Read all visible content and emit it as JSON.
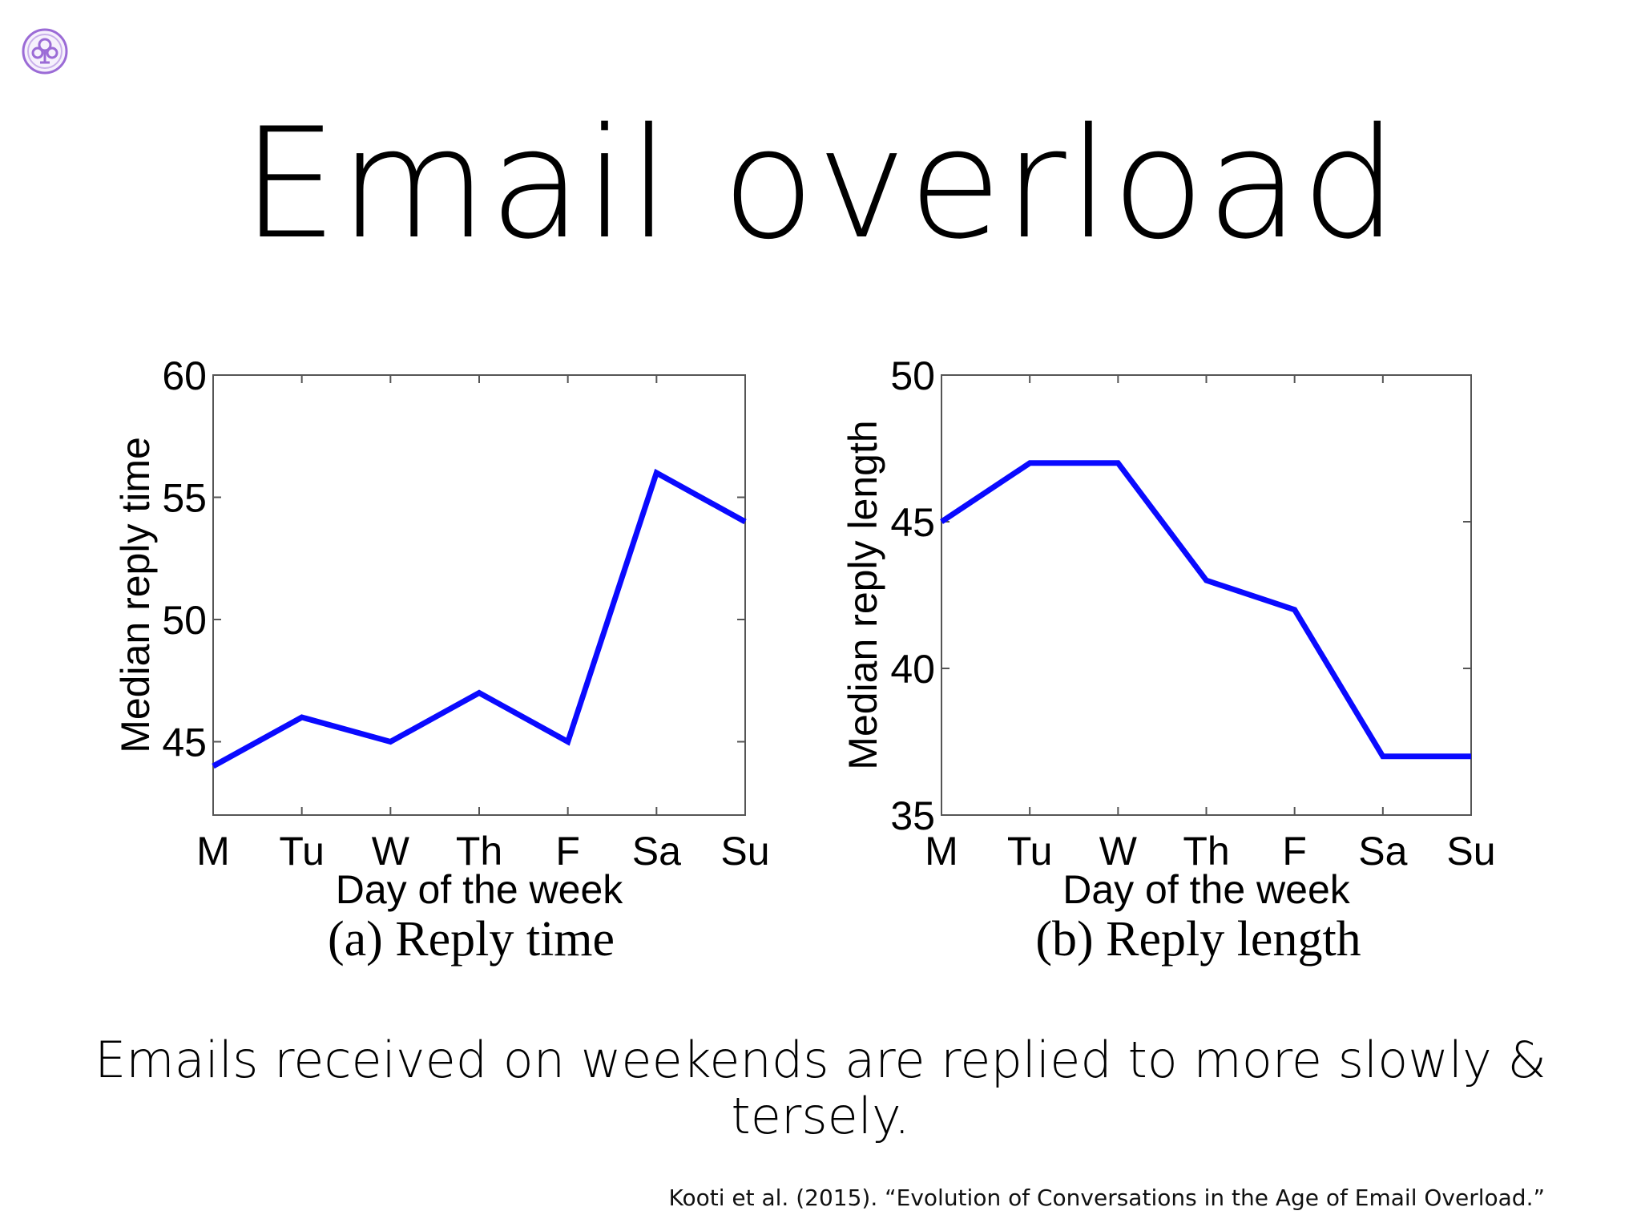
{
  "slide": {
    "title": "Email overload",
    "subtitle": "Emails received on weekends are replied to more slowly & tersely.",
    "citation": "Kooti et al. (2015). “Evolution of Conversations in the Age of Email Overload.”",
    "logo_icon": "university-seal-icon",
    "accent_color": "#9b6bd6"
  },
  "chart_data": [
    {
      "type": "line",
      "caption": "(a) Reply time",
      "xlabel": "Day of the week",
      "ylabel": "Median reply time",
      "categories": [
        "M",
        "Tu",
        "W",
        "Th",
        "F",
        "Sa",
        "Su"
      ],
      "values": [
        44,
        46,
        45,
        47,
        45,
        56,
        54
      ],
      "ylim": [
        42,
        60
      ],
      "yticks": [
        45,
        50,
        55,
        60
      ],
      "line_color": "#0a0aff",
      "grid": false
    },
    {
      "type": "line",
      "caption": "(b) Reply length",
      "xlabel": "Day of the week",
      "ylabel": "Median reply length",
      "categories": [
        "M",
        "Tu",
        "W",
        "Th",
        "F",
        "Sa",
        "Su"
      ],
      "values": [
        45,
        47,
        47,
        43,
        42,
        37,
        37
      ],
      "ylim": [
        35,
        50
      ],
      "yticks": [
        35,
        40,
        45,
        50
      ],
      "line_color": "#0a0aff",
      "grid": false
    }
  ]
}
